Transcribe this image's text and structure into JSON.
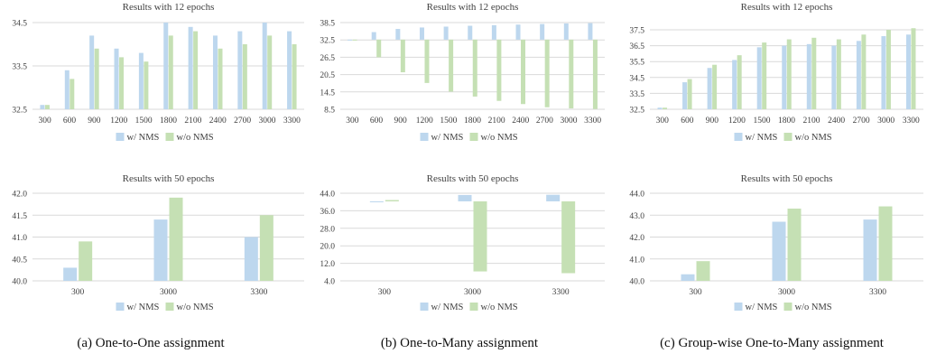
{
  "colors": {
    "with_nms": "#bdd7ee",
    "without_nms": "#c5e0b4"
  },
  "legend": {
    "with_nms": "w/ NMS",
    "without_nms": "w/o NMS"
  },
  "captions": [
    "(a) One-to-One assignment",
    "(b) One-to-Many assignment",
    "(c) Group-wise One-to-Many assignment"
  ],
  "chart_data": [
    {
      "type": "bar",
      "panel": "a",
      "title": "Results with 12 epochs",
      "categories": [
        "300",
        "600",
        "900",
        "1200",
        "1500",
        "1800",
        "2100",
        "2400",
        "2700",
        "3000",
        "3300"
      ],
      "yticks": [
        "32.5",
        "33.5",
        "34.5"
      ],
      "ylim": [
        32.5,
        34.5
      ],
      "grid": true,
      "legend_position": "bottom",
      "series": [
        {
          "name": "w/ NMS",
          "values": [
            32.6,
            33.4,
            34.2,
            33.9,
            33.8,
            34.5,
            34.4,
            34.2,
            34.3,
            34.5,
            34.3
          ]
        },
        {
          "name": "w/o NMS",
          "values": [
            32.6,
            33.2,
            33.9,
            33.7,
            33.6,
            34.2,
            34.3,
            33.9,
            34.0,
            34.2,
            34.0
          ]
        }
      ]
    },
    {
      "type": "bar",
      "panel": "b",
      "title": "Results with 12 epochs",
      "categories": [
        "300",
        "600",
        "900",
        "1200",
        "1500",
        "1800",
        "2100",
        "2400",
        "2700",
        "3000",
        "3300"
      ],
      "yticks": [
        "8.5",
        "14.5",
        "20.5",
        "26.5",
        "32.5",
        "38.5"
      ],
      "ylim": [
        8.5,
        38.5
      ],
      "grid": true,
      "legend_position": "bottom",
      "series": [
        {
          "name": "w/ NMS",
          "values": [
            32.6,
            35.2,
            36.3,
            36.8,
            37.1,
            37.4,
            37.6,
            37.8,
            38.0,
            38.2,
            38.3
          ]
        },
        {
          "name": "w/o NMS",
          "values": [
            32.6,
            26.5,
            21.3,
            17.6,
            14.6,
            12.9,
            11.4,
            10.3,
            9.2,
            8.8,
            8.6
          ]
        }
      ]
    },
    {
      "type": "bar",
      "panel": "c",
      "title": "Results with 12 epochs",
      "categories": [
        "300",
        "600",
        "900",
        "1200",
        "1500",
        "1800",
        "2100",
        "2400",
        "2700",
        "3000",
        "3300"
      ],
      "yticks": [
        "32.5",
        "33.5",
        "34.5",
        "35.5",
        "36.5",
        "37.5"
      ],
      "ylim": [
        32.5,
        37.5
      ],
      "grid": true,
      "legend_position": "bottom",
      "series": [
        {
          "name": "w/ NMS",
          "values": [
            32.6,
            34.2,
            35.1,
            35.6,
            36.4,
            36.5,
            36.6,
            36.5,
            36.8,
            37.1,
            37.2
          ]
        },
        {
          "name": "w/o NMS",
          "values": [
            32.6,
            34.4,
            35.3,
            35.9,
            36.7,
            36.9,
            37.0,
            36.9,
            37.2,
            37.5,
            37.6
          ]
        }
      ]
    },
    {
      "type": "bar",
      "panel": "a",
      "title": "Results with 50 epochs",
      "categories": [
        "300",
        "3000",
        "3300"
      ],
      "yticks": [
        "40.0",
        "40.5",
        "41.0",
        "41.5",
        "42.0"
      ],
      "ylim": [
        40.0,
        42.0
      ],
      "grid": true,
      "legend_position": "bottom",
      "series": [
        {
          "name": "w/ NMS",
          "values": [
            40.3,
            41.4,
            41.0
          ]
        },
        {
          "name": "w/o NMS",
          "values": [
            40.9,
            41.9,
            41.5
          ]
        }
      ]
    },
    {
      "type": "bar",
      "panel": "b",
      "title": "Results with 50 epochs",
      "categories": [
        "300",
        "3000",
        "3300"
      ],
      "yticks": [
        "4.0",
        "12.0",
        "20.0",
        "28.0",
        "36.0",
        "44.0"
      ],
      "ylim": [
        4.0,
        44.0
      ],
      "grid": true,
      "legend_position": "bottom",
      "series": [
        {
          "name": "w/ NMS",
          "values": [
            40.3,
            43.2,
            43.3
          ]
        },
        {
          "name": "w/o NMS",
          "values": [
            40.9,
            8.3,
            7.5
          ]
        }
      ]
    },
    {
      "type": "bar",
      "panel": "c",
      "title": "Results with 50 epochs",
      "categories": [
        "300",
        "3000",
        "3300"
      ],
      "yticks": [
        "40.0",
        "41.0",
        "42.0",
        "43.0",
        "44.0"
      ],
      "ylim": [
        40.0,
        44.0
      ],
      "grid": true,
      "legend_position": "bottom",
      "series": [
        {
          "name": "w/ NMS",
          "values": [
            40.3,
            42.7,
            42.8
          ]
        },
        {
          "name": "w/o NMS",
          "values": [
            40.9,
            43.3,
            43.4
          ]
        }
      ]
    }
  ]
}
